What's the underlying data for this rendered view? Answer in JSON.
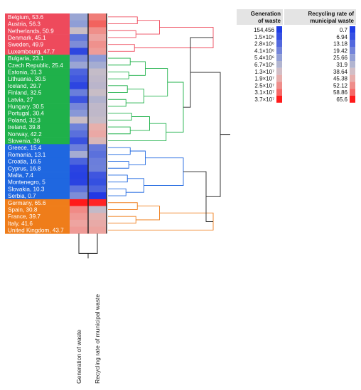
{
  "chart_data": {
    "type": "heatmap",
    "columns": [
      "Generation of waste",
      "Recycling rate of municipal waste"
    ],
    "clusters": [
      {
        "color": "#ee4a5c",
        "rows": [
          {
            "label": "Belgium, 53.6",
            "waste_color": "#9aa6d4",
            "recycling_color": "#f07d78"
          },
          {
            "label": "Austria, 56.3",
            "waste_color": "#8f9ed6",
            "recycling_color": "#f2635e"
          },
          {
            "label": "Netherlands, 50.9",
            "waste_color": "#c9bdc4",
            "recycling_color": "#ef8f8a"
          },
          {
            "label": "Denmark, 45.1",
            "waste_color": "#6378da",
            "recycling_color": "#eda3a0"
          },
          {
            "label": "Sweden, 49.9",
            "waste_color": "#7d8cd8",
            "recycling_color": "#ef918d"
          },
          {
            "label": "Luxembourg, 47.7",
            "waste_color": "#2e46e0",
            "recycling_color": "#ee9c98"
          }
        ]
      },
      {
        "color": "#1fb14a",
        "rows": [
          {
            "label": "Bulgaria, 23.1",
            "waste_color": "#7a8ad8",
            "recycling_color": "#8e9ad6"
          },
          {
            "label": "Czech Republic, 25.4",
            "waste_color": "#9aa5d4",
            "recycling_color": "#a5add2"
          },
          {
            "label": "Estonia, 31.3",
            "waste_color": "#4d64de",
            "recycling_color": "#c4bcc8"
          },
          {
            "label": "Lithuania, 30.5",
            "waste_color": "#3f57df",
            "recycling_color": "#bfb8c9"
          },
          {
            "label": "Iceland, 29.7",
            "waste_color": "#2c45e1",
            "recycling_color": "#bab5cb"
          },
          {
            "label": "Finland, 32.5",
            "waste_color": "#6a7edb",
            "recycling_color": "#c8bdc6"
          },
          {
            "label": "Latvia, 27",
            "waste_color": "#3c54df",
            "recycling_color": "#b1b2cd"
          },
          {
            "label": "Hungary, 30.5",
            "waste_color": "#7786d9",
            "recycling_color": "#bfb8c9"
          },
          {
            "label": "Portugal, 30.4",
            "waste_color": "#8897d7",
            "recycling_color": "#bfb8c9"
          },
          {
            "label": "Poland, 32.3",
            "waste_color": "#c9bcc4",
            "recycling_color": "#c6bcc7"
          },
          {
            "label": "Ireland, 39.8",
            "waste_color": "#6f82da",
            "recycling_color": "#e6b0ac"
          },
          {
            "label": "Norway, 42.2",
            "waste_color": "#5a70dc",
            "recycling_color": "#eaa8a5"
          },
          {
            "label": "Slovenia, 36",
            "waste_color": "#3952df",
            "recycling_color": "#d8b7b8"
          }
        ]
      },
      {
        "color": "#1f67e0",
        "rows": [
          {
            "label": "Greece, 15.4",
            "waste_color": "#6c7fdb",
            "recycling_color": "#6679da"
          },
          {
            "label": "Romania, 13.1",
            "waste_color": "#a5acd2",
            "recycling_color": "#5b71dc"
          },
          {
            "label": "Croatia, 16.5",
            "waste_color": "#4b63de",
            "recycling_color": "#6b7edb"
          },
          {
            "label": "Cyprus, 16.8",
            "waste_color": "#2b44e1",
            "recycling_color": "#6d80da"
          },
          {
            "label": "Malta, 7.4",
            "waste_color": "#2741e2",
            "recycling_color": "#3f56df"
          },
          {
            "label": "Montenegro, 5",
            "waste_color": "#2a43e1",
            "recycling_color": "#3550e0"
          },
          {
            "label": "Slovakia, 10.3",
            "waste_color": "#5e73dc",
            "recycling_color": "#4c63de"
          },
          {
            "label": "Serbia, 0.7",
            "waste_color": "#7d8dd8",
            "recycling_color": "#2238e4"
          }
        ]
      },
      {
        "color": "#ef7d1a",
        "rows": [
          {
            "label": "Germany, 65.6",
            "waste_color": "#ff1a1a",
            "recycling_color": "#ff2424"
          },
          {
            "label": "Spain, 30.8",
            "waste_color": "#f08a86",
            "recycling_color": "#c3bac8"
          },
          {
            "label": "France, 39.7",
            "waste_color": "#ef9894",
            "recycling_color": "#e4b0ad"
          },
          {
            "label": "Italy, 41.6",
            "waste_color": "#eea4a0",
            "recycling_color": "#e8aaa7"
          },
          {
            "label": "United Kingdom, 43.7",
            "waste_color": "#ef9a96",
            "recycling_color": "#eca49f"
          }
        ]
      }
    ],
    "legends": [
      {
        "title": "Generation of waste",
        "items": [
          {
            "label": "154,456",
            "color": "#1f3de6"
          },
          {
            "label": "1.5×10⁶",
            "color": "#3650e2"
          },
          {
            "label": "2.8×10⁶",
            "color": "#5268de"
          },
          {
            "label": "4.1×10⁶",
            "color": "#7384da"
          },
          {
            "label": "5.4×10⁶",
            "color": "#93a0d6"
          },
          {
            "label": "6.7×10⁶",
            "color": "#b2b5d0"
          },
          {
            "label": "1.3×10⁷",
            "color": "#d2bec6"
          },
          {
            "label": "1.9×10⁷",
            "color": "#e7aeac"
          },
          {
            "label": "2.5×10⁷",
            "color": "#ef8d8a"
          },
          {
            "label": "3.1×10⁷",
            "color": "#f66866"
          },
          {
            "label": "3.7×10⁷",
            "color": "#ff1a1a"
          }
        ]
      },
      {
        "title": "Recycling rate of municipal waste",
        "items": [
          {
            "label": "0.7",
            "color": "#1f3de6"
          },
          {
            "label": "6.94",
            "color": "#3650e2"
          },
          {
            "label": "13.18",
            "color": "#5268de"
          },
          {
            "label": "19.42",
            "color": "#7384da"
          },
          {
            "label": "25.66",
            "color": "#93a0d6"
          },
          {
            "label": "31.9",
            "color": "#b2b5d0"
          },
          {
            "label": "38.64",
            "color": "#d2bec6"
          },
          {
            "label": "45.38",
            "color": "#e7aeac"
          },
          {
            "label": "52.12",
            "color": "#ef8d8a"
          },
          {
            "label": "58.86",
            "color": "#f66866"
          },
          {
            "label": "65.6",
            "color": "#ff1a1a"
          }
        ]
      }
    ],
    "cluster_link_color": "#222222"
  }
}
